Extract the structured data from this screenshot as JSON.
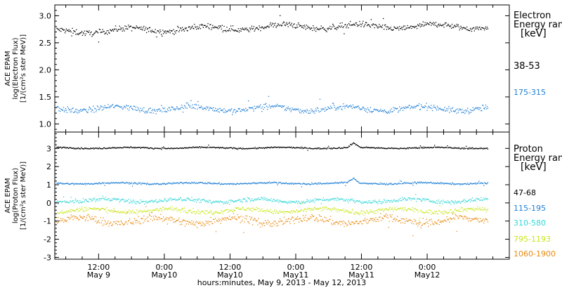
{
  "chart_data": [
    {
      "type": "scatter",
      "ylabel": [
        "ACE EPAM",
        "log(Electron Flux)",
        "[1/(cm²s ster MeV)]"
      ],
      "ylim": [
        0.85,
        3.2
      ],
      "yticks": [
        1.0,
        1.5,
        2.0,
        2.5,
        3.0
      ],
      "ytick_labels": [
        "1.0",
        "1.5",
        "2.0",
        "2.5",
        "3.0"
      ],
      "legend": {
        "title_line1": "Electron",
        "title_line2": "Energy ran",
        "units": "[keV]"
      },
      "series": [
        {
          "name": "38-53",
          "color": "#000000",
          "base": 2.76,
          "spread": 0.07,
          "trend": 0.1
        },
        {
          "name": "175-315",
          "color": "#1f7fd6",
          "base": 1.29,
          "spread": 0.07,
          "trend": 0.0
        }
      ]
    },
    {
      "type": "scatter",
      "ylabel": [
        "ACE EPAM",
        "log(Proton Flux)",
        "[1/(cm²s ster MeV)]"
      ],
      "ylim": [
        -3.1,
        3.9
      ],
      "yticks": [
        -3,
        -2,
        -1,
        0,
        1,
        2,
        3
      ],
      "ytick_labels": [
        "-3",
        "-2",
        "-1",
        "0",
        "1",
        "2",
        "3"
      ],
      "legend": {
        "title_line1": "Proton",
        "title_line2": "Energy ran",
        "units": "[keV]"
      },
      "series": [
        {
          "name": "47-68",
          "color": "#000000",
          "base": 3.05,
          "spread": 0.05,
          "trend": 0.0
        },
        {
          "name": "115-195",
          "color": "#1f7fd6",
          "base": 1.1,
          "spread": 0.06,
          "trend": 0.0
        },
        {
          "name": "310-580",
          "color": "#33d6d6",
          "base": 0.15,
          "spread": 0.14,
          "trend": 0.0
        },
        {
          "name": "795-1193",
          "color": "#c9e619",
          "base": -0.4,
          "spread": 0.16,
          "trend": 0.0
        },
        {
          "name": "1060-1900",
          "color": "#ea8a10",
          "base": -0.95,
          "spread": 0.28,
          "trend": 0.0
        }
      ]
    }
  ],
  "x_axis": {
    "range_hours_from_may9_0000": [
      4,
      87
    ],
    "ticks": [
      {
        "hours": 12,
        "time": "12:00",
        "date": "May 9"
      },
      {
        "hours": 24,
        "time": "0:00",
        "date": "May10"
      },
      {
        "hours": 36,
        "time": "12:00",
        "date": "May10"
      },
      {
        "hours": 48,
        "time": "0:00",
        "date": "May11"
      },
      {
        "hours": 60,
        "time": "12:00",
        "date": "May11"
      },
      {
        "hours": 72,
        "time": "0:00",
        "date": "May12"
      }
    ],
    "label": "hours:minutes, May  9, 2013 - May 12, 2013",
    "data_end_hours": 83
  }
}
